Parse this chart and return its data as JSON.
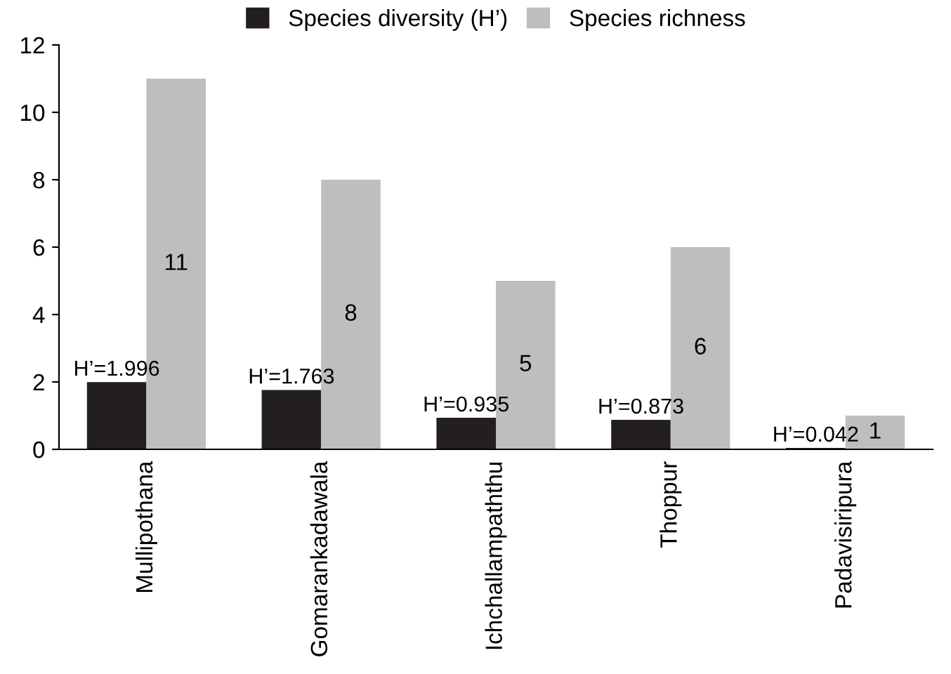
{
  "chart_data": {
    "type": "bar",
    "categories": [
      "Mullipothana",
      "Gomarankadawala",
      "Ichchallampaththu",
      "Thoppur",
      "Padavisiripura"
    ],
    "series": [
      {
        "name": "Species diversity (H’)",
        "color": "#231f20",
        "values": [
          1.996,
          1.763,
          0.935,
          0.873,
          0.042
        ],
        "value_labels": [
          "H’=1.996",
          "H’=1.763",
          "H’=0.935",
          "H’=0.873",
          "H’=0.042"
        ]
      },
      {
        "name": "Species richness",
        "color": "#bcbec0",
        "values": [
          11,
          8,
          5,
          6,
          1
        ],
        "value_labels": [
          "11",
          "8",
          "5",
          "6",
          "1"
        ]
      }
    ],
    "ylim": [
      0,
      12
    ],
    "yticks": [
      0,
      2,
      4,
      6,
      8,
      10,
      12
    ],
    "grid": false,
    "legend": "top"
  }
}
